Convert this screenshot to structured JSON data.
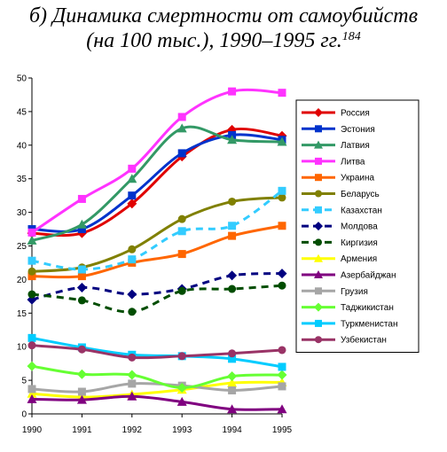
{
  "title": {
    "line1": "б) Динамика смертности от самоубийств",
    "line2": "(на 100 тыс.), 1990–1995 гг.",
    "superscript": "184"
  },
  "chart_data": {
    "type": "line",
    "x": [
      1990,
      1991,
      1992,
      1993,
      1994,
      1995
    ],
    "x_tick_labels": [
      "1990",
      "1991",
      "1992",
      "1993",
      "1994",
      "1995"
    ],
    "ylim": [
      0,
      50
    ],
    "y_ticks": [
      0,
      5,
      10,
      15,
      20,
      25,
      30,
      35,
      40,
      45,
      50
    ],
    "grid": false,
    "legend_position": "right",
    "series": [
      {
        "name": "Россия",
        "color": "#e00000",
        "marker": "diamond",
        "dash": false,
        "values": [
          26.9,
          26.9,
          31.3,
          38.3,
          42.3,
          41.4
        ]
      },
      {
        "name": "Эстония",
        "color": "#0033cc",
        "marker": "square",
        "dash": false,
        "values": [
          27.5,
          27.5,
          32.5,
          38.8,
          41.5,
          40.8
        ]
      },
      {
        "name": "Латвия",
        "color": "#339966",
        "marker": "triangle",
        "dash": false,
        "values": [
          25.8,
          28.2,
          35.0,
          42.5,
          40.8,
          40.5
        ]
      },
      {
        "name": "Литва",
        "color": "#ff33ff",
        "marker": "square",
        "dash": false,
        "values": [
          27.0,
          32.0,
          36.5,
          44.2,
          48.0,
          47.8
        ]
      },
      {
        "name": "Украина",
        "color": "#ff6600",
        "marker": "square",
        "dash": false,
        "values": [
          20.5,
          20.5,
          22.5,
          23.8,
          26.5,
          28.0
        ]
      },
      {
        "name": "Беларусь",
        "color": "#808000",
        "marker": "circle",
        "dash": false,
        "values": [
          21.2,
          21.8,
          24.5,
          29.0,
          31.6,
          32.2
        ]
      },
      {
        "name": "Казахстан",
        "color": "#33ccff",
        "marker": "square",
        "dash": true,
        "values": [
          22.8,
          21.5,
          23.0,
          27.2,
          28.0,
          33.2
        ]
      },
      {
        "name": "Молдова",
        "color": "#000080",
        "marker": "diamond",
        "dash": true,
        "values": [
          17.0,
          18.8,
          17.8,
          18.6,
          20.6,
          20.9
        ]
      },
      {
        "name": "Киргизия",
        "color": "#004d00",
        "marker": "circle",
        "dash": true,
        "values": [
          17.8,
          16.9,
          15.2,
          18.3,
          18.6,
          19.1
        ]
      },
      {
        "name": "Армения",
        "color": "#ffff00",
        "marker": "triangle",
        "dash": false,
        "values": [
          3.0,
          2.5,
          2.9,
          3.6,
          4.6,
          4.7
        ]
      },
      {
        "name": "Азербайджан",
        "color": "#800080",
        "marker": "triangle",
        "dash": false,
        "values": [
          2.2,
          2.1,
          2.6,
          1.8,
          0.7,
          0.7
        ]
      },
      {
        "name": "Грузия",
        "color": "#a6a6a6",
        "marker": "square",
        "dash": false,
        "values": [
          3.7,
          3.3,
          4.5,
          4.2,
          3.5,
          4.1
        ]
      },
      {
        "name": "Таджикистан",
        "color": "#66ff33",
        "marker": "diamond",
        "dash": false,
        "values": [
          7.1,
          5.9,
          5.8,
          3.9,
          5.6,
          5.8
        ]
      },
      {
        "name": "Туркменистан",
        "color": "#00ccff",
        "marker": "square",
        "dash": false,
        "values": [
          11.3,
          9.9,
          8.8,
          8.6,
          8.2,
          7.0
        ]
      },
      {
        "name": "Узбекистан",
        "color": "#993366",
        "marker": "circle",
        "dash": false,
        "values": [
          10.2,
          9.6,
          8.4,
          8.6,
          9.0,
          9.5
        ]
      }
    ]
  }
}
